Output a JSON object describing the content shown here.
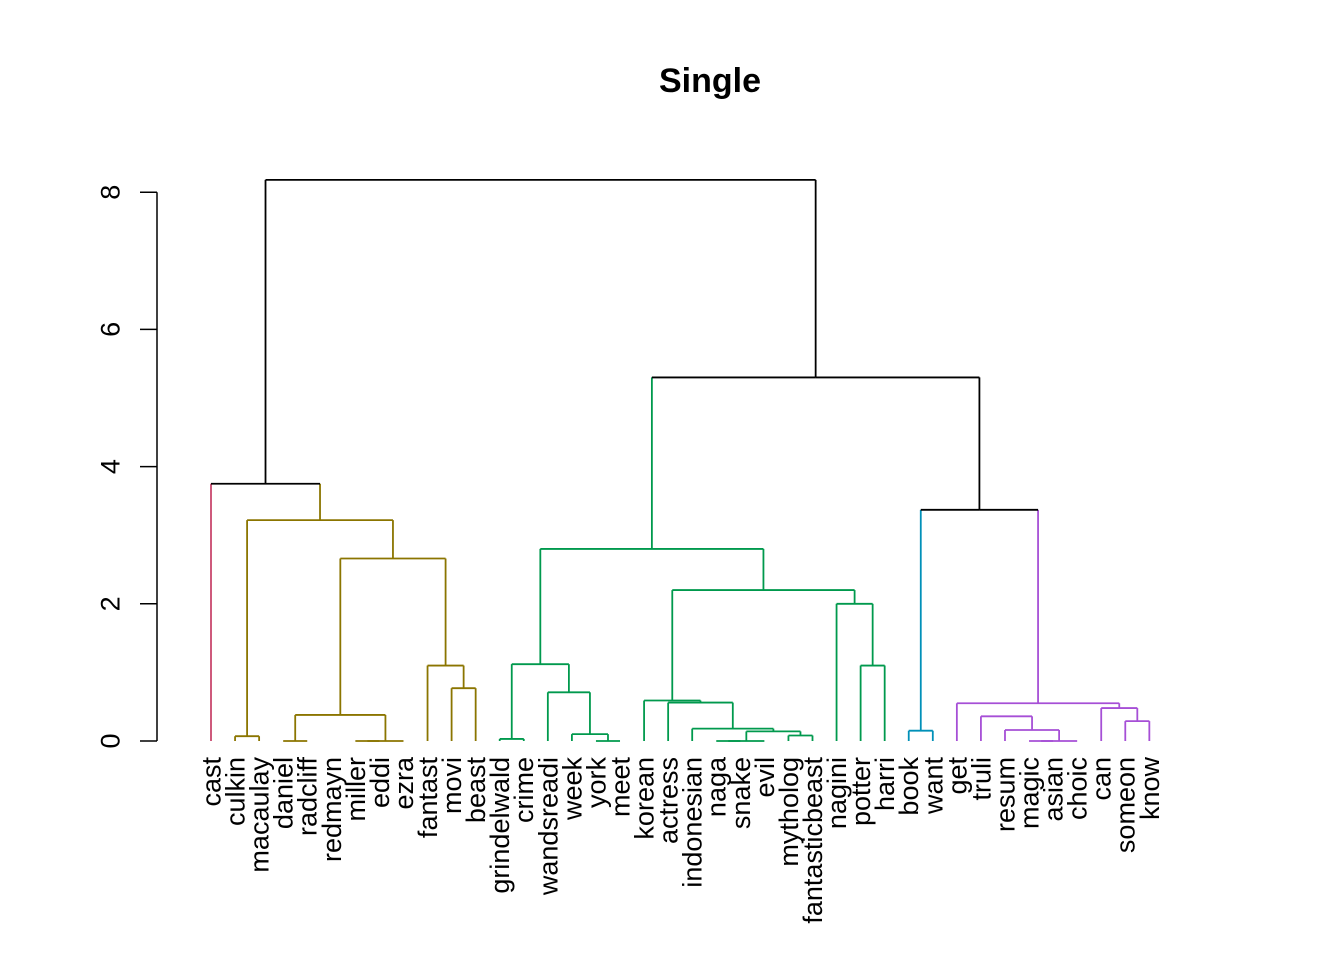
{
  "chart_data": {
    "type": "dendrogram",
    "title": "Single",
    "xlabel": "",
    "ylabel": "",
    "ylim": [
      0,
      8
    ],
    "yticks": [
      0,
      2,
      4,
      6,
      8
    ],
    "leaves": [
      "cast",
      "culkin",
      "macaulay",
      "daniel",
      "radcliff",
      "redmayn",
      "miller",
      "eddi",
      "ezra",
      "fantast",
      "movi",
      "beast",
      "grindelwald",
      "crime",
      "wandsreadi",
      "week",
      "york",
      "meet",
      "korean",
      "actress",
      "indonesian",
      "naga",
      "snake",
      "evil",
      "mytholog",
      "fantasticbeast",
      "nagini",
      "potter",
      "harri",
      "book",
      "want",
      "get",
      "truli",
      "resum",
      "magic",
      "asian",
      "choic",
      "can",
      "someon",
      "know"
    ],
    "merges": [
      {
        "a": 3,
        "b": 4,
        "height": 0.0
      },
      {
        "a": 6,
        "b": 7,
        "height": 0.0
      },
      {
        "a": 7,
        "b": 8,
        "height": 0.0
      },
      {
        "a": 16,
        "b": 17,
        "height": 0.0
      },
      {
        "a": 21,
        "b": 22,
        "height": 0.0
      },
      {
        "a": 22,
        "b": 23,
        "height": 0.0
      },
      {
        "a": 34,
        "b": 35,
        "height": 0.0
      },
      {
        "a": 35,
        "b": 36,
        "height": 0.0
      },
      {
        "a": 12,
        "b": 13,
        "height": 0.03
      },
      {
        "a": 1,
        "b": 2,
        "height": 0.07
      },
      {
        "a": 24,
        "b": 25,
        "height": 0.08
      },
      {
        "a": 15,
        "b": 16,
        "height": 0.1
      },
      {
        "a": 23,
        "b": 24,
        "height": 0.14
      },
      {
        "a": 29,
        "b": 30,
        "height": 0.15
      },
      {
        "a": 33,
        "b": 34,
        "height": 0.16
      },
      {
        "a": 22,
        "b": 23,
        "height": 0.17
      },
      {
        "a": 20,
        "b": 21,
        "height": 0.18
      },
      {
        "a": 38,
        "b": 39,
        "height": 0.29
      },
      {
        "a": 32,
        "b": 33,
        "height": 0.36
      },
      {
        "a": 4,
        "b": 6,
        "height": 0.38
      },
      {
        "a": 37,
        "b": 38,
        "height": 0.48
      },
      {
        "a": 31,
        "b": 37,
        "height": 0.55
      },
      {
        "a": 19,
        "b": 20,
        "height": 0.56
      },
      {
        "a": 19,
        "b": 20,
        "height": 0.58
      },
      {
        "a": 18,
        "b": 19,
        "height": 0.59
      },
      {
        "a": 14,
        "b": 15,
        "height": 0.71
      },
      {
        "a": 10,
        "b": 11,
        "height": 0.77
      },
      {
        "a": 9,
        "b": 10,
        "height": 1.1
      },
      {
        "a": 27,
        "b": 28,
        "height": 1.1
      },
      {
        "a": 12,
        "b": 14,
        "height": 1.12
      },
      {
        "a": 26,
        "b": 27,
        "height": 2.0
      },
      {
        "a": 18,
        "b": 26,
        "height": 2.2
      },
      {
        "a": 4,
        "b": 9,
        "height": 2.66
      },
      {
        "a": 12,
        "b": 18,
        "height": 2.8
      },
      {
        "a": 1,
        "b": 4,
        "height": 3.22
      },
      {
        "a": 29,
        "b": 31,
        "height": 3.37
      },
      {
        "a": 0,
        "b": 1,
        "height": 3.75
      },
      {
        "a": 12,
        "b": 29,
        "height": 5.3
      },
      {
        "a": 0,
        "b": 12,
        "height": 8.18
      }
    ],
    "colors": {
      "cast": "#C8486E",
      "group1": "#8B7500",
      "group2": "#00994D",
      "book": "#0090B8",
      "group4": "#A64FD6",
      "root": "#000000"
    }
  }
}
